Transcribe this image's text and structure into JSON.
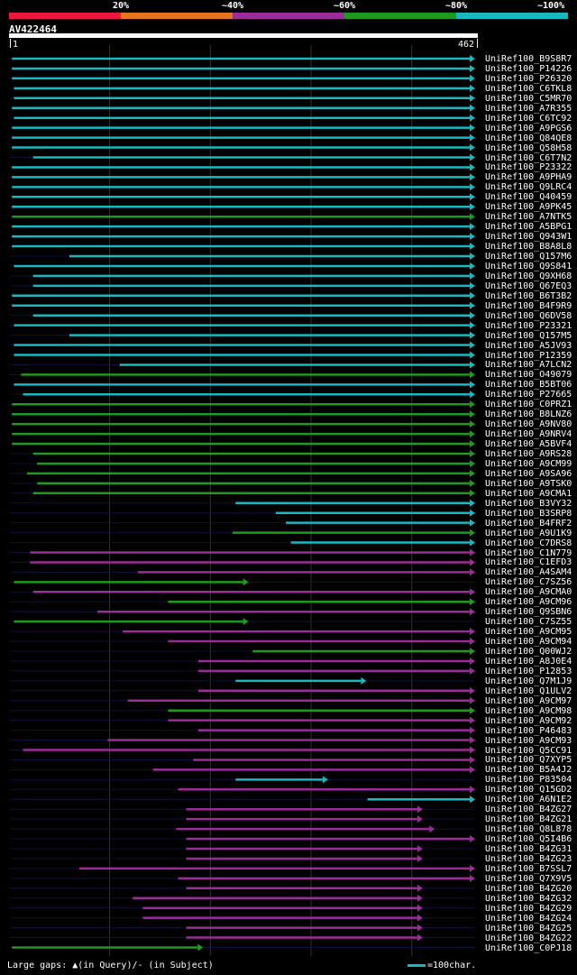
{
  "legend": {
    "labels": [
      "20%",
      "~40%",
      "~60%",
      "~80%",
      "~100%"
    ],
    "colors": [
      "#e8193c",
      "#e8731e",
      "#9b2c9a",
      "#1e9a1e",
      "#17b8bf"
    ]
  },
  "query": {
    "id": "AV422464",
    "start": 1,
    "end": 462,
    "start_label": "1",
    "end_label": "462"
  },
  "footer": {
    "gaps_text": "Large gaps: ▲(in Query)/- (in Subject)",
    "scale_text": "=100char."
  },
  "hits": [
    {
      "name": "UniRef100_B9S8R7",
      "color": "#17b8bf",
      "start": 3,
      "end": 462
    },
    {
      "name": "UniRef100_P14226",
      "color": "#17b8bf",
      "start": 3,
      "end": 462
    },
    {
      "name": "UniRef100_P26320",
      "color": "#17b8bf",
      "start": 3,
      "end": 462
    },
    {
      "name": "UniRef100_C6TKL8",
      "color": "#17b8bf",
      "start": 5,
      "end": 462
    },
    {
      "name": "UniRef100_C5MR70",
      "color": "#17b8bf",
      "start": 5,
      "end": 462
    },
    {
      "name": "UniRef100_A7R355",
      "color": "#17b8bf",
      "start": 3,
      "end": 462
    },
    {
      "name": "UniRef100_C6TC92",
      "color": "#17b8bf",
      "start": 5,
      "end": 462
    },
    {
      "name": "UniRef100_A9PGS6",
      "color": "#17b8bf",
      "start": 3,
      "end": 462
    },
    {
      "name": "UniRef100_Q84QE8",
      "color": "#17b8bf",
      "start": 3,
      "end": 462
    },
    {
      "name": "UniRef100_Q58H58",
      "color": "#17b8bf",
      "start": 3,
      "end": 462
    },
    {
      "name": "UniRef100_C6T7N2",
      "color": "#17b8bf",
      "start": 24,
      "end": 462
    },
    {
      "name": "UniRef100_P23322",
      "color": "#17b8bf",
      "start": 3,
      "end": 462
    },
    {
      "name": "UniRef100_A9PHA9",
      "color": "#17b8bf",
      "start": 3,
      "end": 462
    },
    {
      "name": "UniRef100_Q9LRC4",
      "color": "#17b8bf",
      "start": 3,
      "end": 462
    },
    {
      "name": "UniRef100_Q40459",
      "color": "#17b8bf",
      "start": 3,
      "end": 462
    },
    {
      "name": "UniRef100_A9PK45",
      "color": "#17b8bf",
      "start": 3,
      "end": 462
    },
    {
      "name": "UniRef100_A7NTK5",
      "color": "#1e9a1e",
      "start": 3,
      "end": 462
    },
    {
      "name": "UniRef100_A5BPG1",
      "color": "#17b8bf",
      "start": 3,
      "end": 462
    },
    {
      "name": "UniRef100_Q943W1",
      "color": "#17b8bf",
      "start": 3,
      "end": 462
    },
    {
      "name": "UniRef100_B8A8L8",
      "color": "#17b8bf",
      "start": 3,
      "end": 462
    },
    {
      "name": "UniRef100_Q157M6",
      "color": "#17b8bf",
      "start": 60,
      "end": 462
    },
    {
      "name": "UniRef100_Q9S841",
      "color": "#17b8bf",
      "start": 5,
      "end": 462
    },
    {
      "name": "UniRef100_Q9XH68",
      "color": "#17b8bf",
      "start": 24,
      "end": 462
    },
    {
      "name": "UniRef100_Q67EQ3",
      "color": "#17b8bf",
      "start": 24,
      "end": 462
    },
    {
      "name": "UniRef100_B6T3B2",
      "color": "#17b8bf",
      "start": 3,
      "end": 462
    },
    {
      "name": "UniRef100_B4F9R9",
      "color": "#17b8bf",
      "start": 3,
      "end": 462
    },
    {
      "name": "UniRef100_Q6DV58",
      "color": "#17b8bf",
      "start": 24,
      "end": 462
    },
    {
      "name": "UniRef100_P23321",
      "color": "#17b8bf",
      "start": 5,
      "end": 462
    },
    {
      "name": "UniRef100_Q157M5",
      "color": "#17b8bf",
      "start": 60,
      "end": 462
    },
    {
      "name": "UniRef100_A5JV93",
      "color": "#17b8bf",
      "start": 5,
      "end": 462
    },
    {
      "name": "UniRef100_P12359",
      "color": "#17b8bf",
      "start": 5,
      "end": 462
    },
    {
      "name": "UniRef100_A7LCN2",
      "color": "#17b8bf",
      "start": 110,
      "end": 462
    },
    {
      "name": "UniRef100_O49079",
      "color": "#1e9a1e",
      "start": 12,
      "end": 462
    },
    {
      "name": "UniRef100_B5BT06",
      "color": "#17b8bf",
      "start": 5,
      "end": 462
    },
    {
      "name": "UniRef100_P27665",
      "color": "#17b8bf",
      "start": 14,
      "end": 462
    },
    {
      "name": "UniRef100_C0PRZ1",
      "color": "#1e9a1e",
      "start": 3,
      "end": 462
    },
    {
      "name": "UniRef100_B8LNZ6",
      "color": "#1e9a1e",
      "start": 3,
      "end": 462
    },
    {
      "name": "UniRef100_A9NV80",
      "color": "#1e9a1e",
      "start": 3,
      "end": 462
    },
    {
      "name": "UniRef100_A9NRV4",
      "color": "#1e9a1e",
      "start": 3,
      "end": 462
    },
    {
      "name": "UniRef100_A5BVF4",
      "color": "#1e9a1e",
      "start": 3,
      "end": 462
    },
    {
      "name": "UniRef100_A9RS28",
      "color": "#1e9a1e",
      "start": 24,
      "end": 462
    },
    {
      "name": "UniRef100_A9CM99",
      "color": "#1e9a1e",
      "start": 28,
      "end": 462
    },
    {
      "name": "UniRef100_A9SA96",
      "color": "#1e9a1e",
      "start": 18,
      "end": 462
    },
    {
      "name": "UniRef100_A9TSK0",
      "color": "#1e9a1e",
      "start": 28,
      "end": 462
    },
    {
      "name": "UniRef100_A9CMA1",
      "color": "#1e9a1e",
      "start": 24,
      "end": 462
    },
    {
      "name": "UniRef100_B3VY32",
      "color": "#17b8bf",
      "start": 225,
      "end": 462
    },
    {
      "name": "UniRef100_B3SRP8",
      "color": "#17b8bf",
      "start": 265,
      "end": 462
    },
    {
      "name": "UniRef100_B4FRF2",
      "color": "#17b8bf",
      "start": 275,
      "end": 462
    },
    {
      "name": "UniRef100_A9U1K9",
      "color": "#1e9a1e",
      "start": 222,
      "end": 462
    },
    {
      "name": "UniRef100_C7DRS8",
      "color": "#17b8bf",
      "start": 280,
      "end": 462
    },
    {
      "name": "UniRef100_C1N779",
      "color": "#9b2c9a",
      "start": 21,
      "end": 462
    },
    {
      "name": "UniRef100_C1EFD3",
      "color": "#9b2c9a",
      "start": 21,
      "end": 462
    },
    {
      "name": "UniRef100_A4SAM4",
      "color": "#9b2c9a",
      "start": 128,
      "end": 462
    },
    {
      "name": "UniRef100_C7SZ56",
      "color": "#1e9a1e",
      "start": 5,
      "end": 237
    },
    {
      "name": "UniRef100_A9CMA0",
      "color": "#9b2c9a",
      "start": 24,
      "end": 462
    },
    {
      "name": "UniRef100_A9CM96",
      "color": "#1e9a1e",
      "start": 158,
      "end": 462
    },
    {
      "name": "UniRef100_Q9SBN6",
      "color": "#9b2c9a",
      "start": 88,
      "end": 462
    },
    {
      "name": "UniRef100_C7SZ55",
      "color": "#1e9a1e",
      "start": 5,
      "end": 237
    },
    {
      "name": "UniRef100_A9CM95",
      "color": "#9b2c9a",
      "start": 113,
      "end": 462
    },
    {
      "name": "UniRef100_A9CM94",
      "color": "#9b2c9a",
      "start": 158,
      "end": 462
    },
    {
      "name": "UniRef100_Q00WJ2",
      "color": "#1e9a1e",
      "start": 242,
      "end": 462
    },
    {
      "name": "UniRef100_A8J0E4",
      "color": "#9b2c9a",
      "start": 188,
      "end": 462
    },
    {
      "name": "UniRef100_P12853",
      "color": "#9b2c9a",
      "start": 188,
      "end": 462
    },
    {
      "name": "UniRef100_Q7M1J9",
      "color": "#17b8bf",
      "start": 225,
      "end": 354
    },
    {
      "name": "UniRef100_Q1ULV2",
      "color": "#9b2c9a",
      "start": 188,
      "end": 462
    },
    {
      "name": "UniRef100_A9CM97",
      "color": "#9b2c9a",
      "start": 118,
      "end": 462
    },
    {
      "name": "UniRef100_A9CM98",
      "color": "#1e9a1e",
      "start": 158,
      "end": 462
    },
    {
      "name": "UniRef100_A9CM92",
      "color": "#9b2c9a",
      "start": 158,
      "end": 462
    },
    {
      "name": "UniRef100_P46483",
      "color": "#9b2c9a",
      "start": 188,
      "end": 462
    },
    {
      "name": "UniRef100_A9CM93",
      "color": "#9b2c9a",
      "start": 98,
      "end": 462
    },
    {
      "name": "UniRef100_Q5CC91",
      "color": "#9b2c9a",
      "start": 14,
      "end": 462
    },
    {
      "name": "UniRef100_Q7XYP5",
      "color": "#9b2c9a",
      "start": 183,
      "end": 462
    },
    {
      "name": "UniRef100_B5A4J2",
      "color": "#9b2c9a",
      "start": 143,
      "end": 462
    },
    {
      "name": "UniRef100_P83504",
      "color": "#17b8bf",
      "start": 225,
      "end": 316
    },
    {
      "name": "UniRef100_Q15GD2",
      "color": "#9b2c9a",
      "start": 168,
      "end": 462
    },
    {
      "name": "UniRef100_A6N1E2",
      "color": "#17b8bf",
      "start": 356,
      "end": 462
    },
    {
      "name": "UniRef100_B4ZG27",
      "color": "#9b2c9a",
      "start": 176,
      "end": 410
    },
    {
      "name": "UniRef100_B4ZG21",
      "color": "#9b2c9a",
      "start": 176,
      "end": 410
    },
    {
      "name": "UniRef100_Q8L878",
      "color": "#9b2c9a",
      "start": 166,
      "end": 422
    },
    {
      "name": "UniRef100_Q5I4B6",
      "color": "#9b2c9a",
      "start": 176,
      "end": 462
    },
    {
      "name": "UniRef100_B4ZG31",
      "color": "#9b2c9a",
      "start": 176,
      "end": 410
    },
    {
      "name": "UniRef100_B4ZG23",
      "color": "#9b2c9a",
      "start": 176,
      "end": 410
    },
    {
      "name": "UniRef100_B7SSL7",
      "color": "#9b2c9a",
      "start": 70,
      "end": 462
    },
    {
      "name": "UniRef100_Q7X9V5",
      "color": "#9b2c9a",
      "start": 168,
      "end": 462
    },
    {
      "name": "UniRef100_B4ZG20",
      "color": "#9b2c9a",
      "start": 176,
      "end": 410
    },
    {
      "name": "UniRef100_B4ZG32",
      "color": "#9b2c9a",
      "start": 123,
      "end": 410
    },
    {
      "name": "UniRef100_B4ZG29",
      "color": "#9b2c9a",
      "start": 133,
      "end": 410
    },
    {
      "name": "UniRef100_B4ZG24",
      "color": "#9b2c9a",
      "start": 133,
      "end": 410
    },
    {
      "name": "UniRef100_B4ZG25",
      "color": "#9b2c9a",
      "start": 176,
      "end": 410
    },
    {
      "name": "UniRef100_B4ZG22",
      "color": "#9b2c9a",
      "start": 176,
      "end": 410
    },
    {
      "name": "UniRef100_C0PJ18",
      "color": "#1e9a1e",
      "start": 3,
      "end": 192
    }
  ]
}
